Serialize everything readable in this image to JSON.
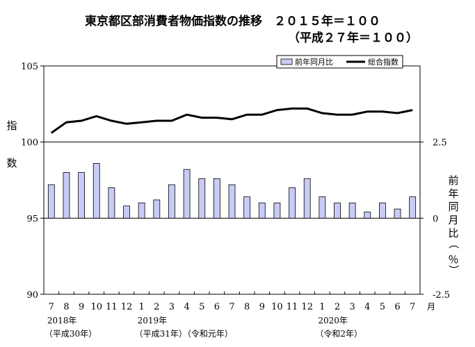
{
  "chart_data": {
    "type": "bar+line",
    "title_line1": "東京都区部消費者物価指数の推移　２０１５年＝１００",
    "title_line2": "（平成２７年＝１００）",
    "categories": [
      "7",
      "8",
      "9",
      "10",
      "11",
      "12",
      "1",
      "2",
      "3",
      "4",
      "5",
      "6",
      "7",
      "8",
      "9",
      "10",
      "11",
      "12",
      "1",
      "2",
      "3",
      "4",
      "5",
      "6",
      "7"
    ],
    "x_unit": "月",
    "year_labels": [
      {
        "line1": "2018年",
        "line2": "（平成30年）",
        "index": 0
      },
      {
        "line1": "2019年",
        "line2": "（平成31年）（令和元年）",
        "index": 6
      },
      {
        "line1": "2020年",
        "line2": "（令和2年）",
        "index": 18
      }
    ],
    "left_axis": {
      "label": "指数",
      "ylim": [
        90,
        105
      ],
      "ticks": [
        "90",
        "95",
        "100",
        "105"
      ]
    },
    "right_axis": {
      "label": "前年同月比（％）",
      "ylim": [
        -2.5,
        5
      ],
      "ticks": [
        "-2.5",
        "0",
        "2.5"
      ]
    },
    "legend": {
      "position": "top-right"
    },
    "series": [
      {
        "name": "前年同月比",
        "type": "bar",
        "axis": "right",
        "color": "#c8cbf5",
        "values": [
          1.1,
          1.5,
          1.5,
          1.8,
          1.0,
          0.4,
          0.5,
          0.6,
          1.1,
          1.6,
          1.3,
          1.3,
          1.1,
          0.7,
          0.5,
          0.5,
          1.0,
          1.3,
          0.7,
          0.5,
          0.5,
          0.2,
          0.5,
          0.3,
          0.7
        ]
      },
      {
        "name": "総合指数",
        "type": "line",
        "axis": "left",
        "color": "#000000",
        "values": [
          100.6,
          101.3,
          101.4,
          101.7,
          101.4,
          101.2,
          101.3,
          101.4,
          101.4,
          101.8,
          101.6,
          101.6,
          101.5,
          101.8,
          101.8,
          102.1,
          102.2,
          102.2,
          101.9,
          101.8,
          101.8,
          102.0,
          102.0,
          101.9,
          102.1
        ]
      }
    ]
  }
}
